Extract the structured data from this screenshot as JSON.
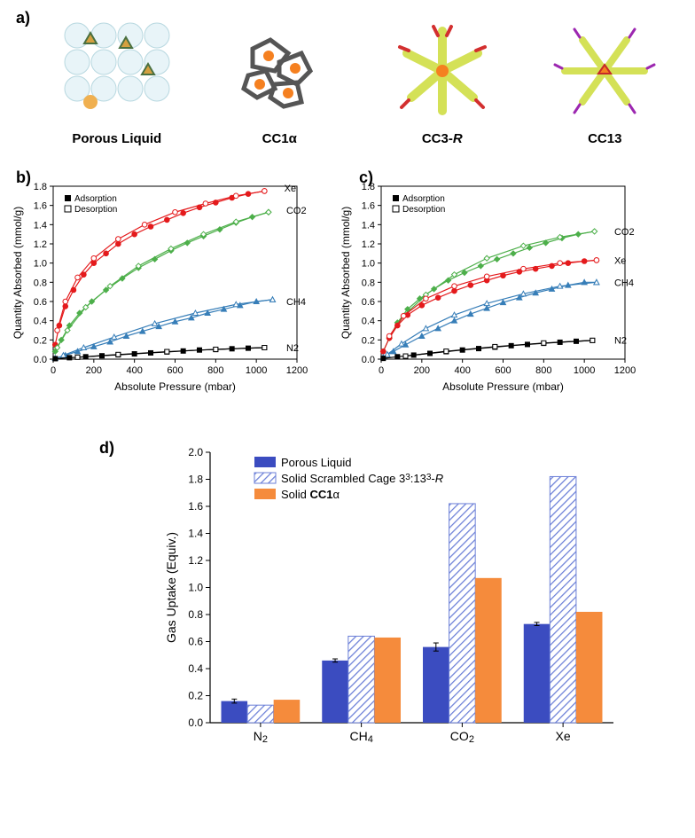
{
  "panelA": {
    "label": "a)",
    "structures": [
      {
        "name": "Porous Liquid"
      },
      {
        "name": "CC1α"
      },
      {
        "name": "CC3-R",
        "italic_part": "R"
      },
      {
        "name": "CC13"
      }
    ]
  },
  "panelB": {
    "label": "b)",
    "ylabel": "Quantity Absorbed (mmol/g)",
    "xlabel": "Absolute Pressure (mbar)",
    "xlim": [
      0,
      1200
    ],
    "xtick_step": 200,
    "ylim": [
      0.0,
      1.8
    ],
    "ytick_step": 0.2,
    "legend": [
      "Adsorption",
      "Desorption"
    ],
    "series": [
      {
        "label": "Xe",
        "label_x": 1120,
        "label_y": 1.78,
        "color": "#e41a1c",
        "marker": "circle",
        "adsorption": [
          [
            10,
            0.15
          ],
          [
            30,
            0.35
          ],
          [
            60,
            0.55
          ],
          [
            100,
            0.72
          ],
          [
            150,
            0.88
          ],
          [
            200,
            1.0
          ],
          [
            260,
            1.1
          ],
          [
            320,
            1.2
          ],
          [
            400,
            1.3
          ],
          [
            480,
            1.38
          ],
          [
            560,
            1.45
          ],
          [
            640,
            1.52
          ],
          [
            720,
            1.58
          ],
          [
            800,
            1.63
          ],
          [
            880,
            1.68
          ],
          [
            960,
            1.72
          ],
          [
            1040,
            1.75
          ]
        ],
        "desorption": [
          [
            1040,
            1.75
          ],
          [
            900,
            1.7
          ],
          [
            750,
            1.62
          ],
          [
            600,
            1.53
          ],
          [
            450,
            1.4
          ],
          [
            320,
            1.25
          ],
          [
            200,
            1.05
          ],
          [
            120,
            0.85
          ],
          [
            60,
            0.6
          ],
          [
            20,
            0.3
          ]
        ]
      },
      {
        "label": "CO2",
        "label_x": 1130,
        "label_y": 1.55,
        "color": "#4daf4a",
        "marker": "diamond",
        "adsorption": [
          [
            10,
            0.08
          ],
          [
            40,
            0.2
          ],
          [
            80,
            0.35
          ],
          [
            130,
            0.48
          ],
          [
            190,
            0.6
          ],
          [
            260,
            0.72
          ],
          [
            340,
            0.84
          ],
          [
            420,
            0.95
          ],
          [
            500,
            1.04
          ],
          [
            580,
            1.13
          ],
          [
            660,
            1.21
          ],
          [
            740,
            1.28
          ],
          [
            820,
            1.35
          ],
          [
            900,
            1.42
          ],
          [
            980,
            1.48
          ],
          [
            1060,
            1.53
          ]
        ],
        "desorption": [
          [
            1060,
            1.53
          ],
          [
            900,
            1.43
          ],
          [
            740,
            1.3
          ],
          [
            580,
            1.15
          ],
          [
            420,
            0.97
          ],
          [
            280,
            0.76
          ],
          [
            160,
            0.54
          ],
          [
            70,
            0.3
          ],
          [
            20,
            0.12
          ]
        ]
      },
      {
        "label": "CH4",
        "label_x": 1130,
        "label_y": 0.6,
        "color": "#377eb8",
        "marker": "triangle",
        "adsorption": [
          [
            10,
            0.01
          ],
          [
            60,
            0.04
          ],
          [
            120,
            0.08
          ],
          [
            200,
            0.13
          ],
          [
            280,
            0.18
          ],
          [
            360,
            0.24
          ],
          [
            440,
            0.29
          ],
          [
            520,
            0.34
          ],
          [
            600,
            0.39
          ],
          [
            680,
            0.43
          ],
          [
            760,
            0.48
          ],
          [
            840,
            0.52
          ],
          [
            920,
            0.56
          ],
          [
            1000,
            0.6
          ],
          [
            1080,
            0.62
          ]
        ],
        "desorption": [
          [
            1080,
            0.62
          ],
          [
            900,
            0.57
          ],
          [
            700,
            0.48
          ],
          [
            500,
            0.37
          ],
          [
            300,
            0.23
          ],
          [
            150,
            0.12
          ],
          [
            50,
            0.04
          ]
        ]
      },
      {
        "label": "N2",
        "label_x": 1130,
        "label_y": 0.12,
        "color": "#000000",
        "marker": "square",
        "adsorption": [
          [
            10,
            0.005
          ],
          [
            80,
            0.015
          ],
          [
            160,
            0.025
          ],
          [
            240,
            0.035
          ],
          [
            320,
            0.045
          ],
          [
            400,
            0.055
          ],
          [
            480,
            0.065
          ],
          [
            560,
            0.075
          ],
          [
            640,
            0.085
          ],
          [
            720,
            0.095
          ],
          [
            800,
            0.1
          ],
          [
            880,
            0.108
          ],
          [
            960,
            0.114
          ],
          [
            1040,
            0.12
          ]
        ],
        "desorption": [
          [
            1040,
            0.12
          ],
          [
            800,
            0.102
          ],
          [
            560,
            0.078
          ],
          [
            320,
            0.048
          ],
          [
            120,
            0.02
          ]
        ]
      }
    ]
  },
  "panelC": {
    "label": "c)",
    "ylabel": "Quantity Absorbed (mmol/g)",
    "xlabel": "Absolute Pressure (mbar)",
    "xlim": [
      0,
      1200
    ],
    "xtick_step": 200,
    "ylim": [
      0.0,
      1.8
    ],
    "ytick_step": 0.2,
    "legend": [
      "Adsorption",
      "Desorption"
    ],
    "series": [
      {
        "label": "CO2",
        "label_x": 1130,
        "label_y": 1.33,
        "color": "#4daf4a",
        "marker": "diamond",
        "adsorption": [
          [
            10,
            0.08
          ],
          [
            40,
            0.22
          ],
          [
            80,
            0.38
          ],
          [
            130,
            0.52
          ],
          [
            190,
            0.63
          ],
          [
            260,
            0.73
          ],
          [
            330,
            0.82
          ],
          [
            410,
            0.9
          ],
          [
            490,
            0.97
          ],
          [
            570,
            1.04
          ],
          [
            650,
            1.1
          ],
          [
            730,
            1.16
          ],
          [
            810,
            1.21
          ],
          [
            890,
            1.26
          ],
          [
            970,
            1.3
          ],
          [
            1050,
            1.33
          ]
        ],
        "desorption": [
          [
            1050,
            1.33
          ],
          [
            880,
            1.27
          ],
          [
            700,
            1.18
          ],
          [
            520,
            1.05
          ],
          [
            360,
            0.88
          ],
          [
            220,
            0.67
          ],
          [
            110,
            0.45
          ],
          [
            40,
            0.22
          ]
        ]
      },
      {
        "label": "Xe",
        "label_x": 1130,
        "label_y": 1.03,
        "color": "#e41a1c",
        "marker": "circle",
        "adsorption": [
          [
            10,
            0.08
          ],
          [
            40,
            0.22
          ],
          [
            80,
            0.35
          ],
          [
            130,
            0.46
          ],
          [
            200,
            0.56
          ],
          [
            280,
            0.64
          ],
          [
            360,
            0.71
          ],
          [
            440,
            0.77
          ],
          [
            520,
            0.82
          ],
          [
            600,
            0.87
          ],
          [
            680,
            0.91
          ],
          [
            760,
            0.94
          ],
          [
            840,
            0.97
          ],
          [
            920,
            1.0
          ],
          [
            1000,
            1.02
          ],
          [
            1060,
            1.03
          ]
        ],
        "desorption": [
          [
            1060,
            1.03
          ],
          [
            880,
            1.0
          ],
          [
            700,
            0.94
          ],
          [
            520,
            0.86
          ],
          [
            360,
            0.76
          ],
          [
            220,
            0.63
          ],
          [
            110,
            0.45
          ],
          [
            40,
            0.24
          ]
        ]
      },
      {
        "label": "CH4",
        "label_x": 1130,
        "label_y": 0.8,
        "color": "#377eb8",
        "marker": "triangle",
        "adsorption": [
          [
            10,
            0.02
          ],
          [
            60,
            0.08
          ],
          [
            120,
            0.15
          ],
          [
            200,
            0.24
          ],
          [
            280,
            0.32
          ],
          [
            360,
            0.4
          ],
          [
            440,
            0.47
          ],
          [
            520,
            0.53
          ],
          [
            600,
            0.59
          ],
          [
            680,
            0.64
          ],
          [
            760,
            0.69
          ],
          [
            840,
            0.73
          ],
          [
            920,
            0.77
          ],
          [
            1000,
            0.8
          ],
          [
            1060,
            0.8
          ]
        ],
        "desorption": [
          [
            1060,
            0.8
          ],
          [
            880,
            0.76
          ],
          [
            700,
            0.68
          ],
          [
            520,
            0.58
          ],
          [
            360,
            0.46
          ],
          [
            220,
            0.32
          ],
          [
            100,
            0.16
          ],
          [
            30,
            0.05
          ]
        ]
      },
      {
        "label": "N2",
        "label_x": 1130,
        "label_y": 0.2,
        "color": "#000000",
        "marker": "square",
        "adsorption": [
          [
            10,
            0.008
          ],
          [
            80,
            0.025
          ],
          [
            160,
            0.042
          ],
          [
            240,
            0.06
          ],
          [
            320,
            0.078
          ],
          [
            400,
            0.095
          ],
          [
            480,
            0.11
          ],
          [
            560,
            0.125
          ],
          [
            640,
            0.14
          ],
          [
            720,
            0.153
          ],
          [
            800,
            0.165
          ],
          [
            880,
            0.176
          ],
          [
            960,
            0.186
          ],
          [
            1040,
            0.195
          ]
        ],
        "desorption": [
          [
            1040,
            0.195
          ],
          [
            800,
            0.168
          ],
          [
            560,
            0.13
          ],
          [
            320,
            0.082
          ],
          [
            120,
            0.032
          ]
        ]
      }
    ]
  },
  "panelD": {
    "label": "d)",
    "ylabel": "Gas Uptake (Equiv.)",
    "xlim_categories": [
      "N₂",
      "CH₄",
      "CO₂",
      "Xe"
    ],
    "ylim": [
      0.0,
      2.0
    ],
    "ytick_step": 0.2,
    "legend": [
      {
        "label": "Porous Liquid",
        "fill": "#3b4cc0",
        "pattern": "solid"
      },
      {
        "label": "Solid Scrambled Cage 3³:13³-R",
        "fill": "#6b7fd7",
        "pattern": "hatch"
      },
      {
        "label": "Solid CC1α",
        "fill": "#f58b3c",
        "pattern": "solid"
      }
    ],
    "bar_width": 0.26,
    "data": {
      "N2": {
        "porous": 0.16,
        "porous_err": 0.015,
        "scrambled": 0.13,
        "cc1": 0.17
      },
      "CH4": {
        "porous": 0.46,
        "porous_err": 0.012,
        "scrambled": 0.64,
        "cc1": 0.63
      },
      "CO2": {
        "porous": 0.56,
        "porous_err": 0.03,
        "scrambled": 1.62,
        "cc1": 1.07
      },
      "Xe": {
        "porous": 0.73,
        "porous_err": 0.012,
        "scrambled": 1.82,
        "cc1": 0.82
      }
    },
    "colors": {
      "porous": "#3b4cc0",
      "scrambled_fill": "#ffffff",
      "scrambled_stroke": "#6b7fd7",
      "cc1": "#f58b3c",
      "axis": "#000000"
    }
  },
  "styling": {
    "background": "#ffffff",
    "axis_color": "#000000",
    "tick_font_size": 11,
    "label_font_size": 12,
    "panel_label_font_size": 18
  }
}
